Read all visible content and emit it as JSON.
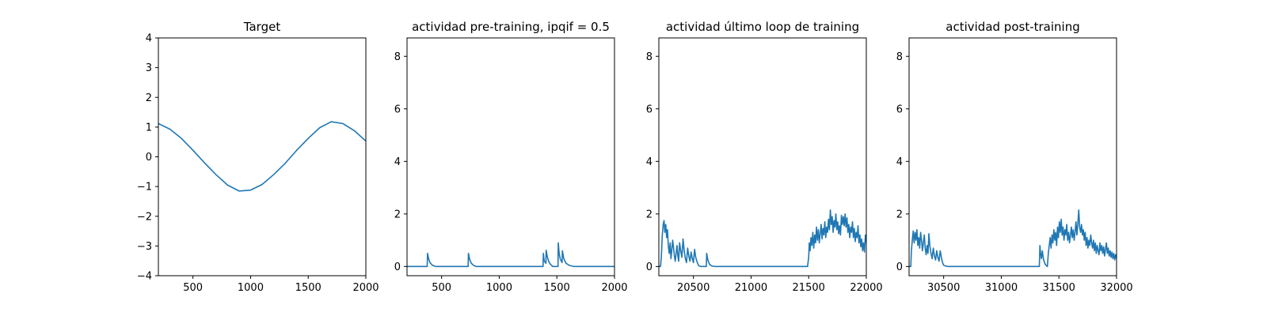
{
  "chart_data": [
    {
      "type": "line",
      "title": "Target",
      "xlabel": "",
      "ylabel": "",
      "xlim": [
        200,
        2000
      ],
      "ylim": [
        -4,
        4
      ],
      "xticks": [
        500,
        1000,
        1500,
        2000
      ],
      "yticks": [
        -4,
        -3,
        -2,
        -1,
        0,
        1,
        2,
        3,
        4
      ],
      "grid": false,
      "line_color": "#1f77b4",
      "series": [
        {
          "x": [
            200,
            300,
            400,
            500,
            600,
            700,
            800,
            900,
            1000,
            1100,
            1200,
            1300,
            1400,
            1500,
            1600,
            1700,
            1800,
            1900,
            2000
          ],
          "y": [
            1.12,
            0.93,
            0.62,
            0.22,
            -0.2,
            -0.6,
            -0.95,
            -1.15,
            -1.12,
            -0.93,
            -0.6,
            -0.22,
            0.22,
            0.62,
            0.98,
            1.18,
            1.12,
            0.88,
            0.53
          ]
        }
      ]
    },
    {
      "type": "line",
      "title": "actividad pre-training, ipqif = 0.5",
      "xlabel": "",
      "ylabel": "",
      "xlim": [
        200,
        2000
      ],
      "ylim": [
        -0.35,
        8.7
      ],
      "xticks": [
        500,
        1000,
        1500,
        2000
      ],
      "yticks": [
        0,
        2,
        4,
        6,
        8
      ],
      "grid": false,
      "line_color": "#1f77b4",
      "series": [
        {
          "x": [
            200,
            375,
            378,
            388,
            400,
            420,
            450,
            730,
            733,
            743,
            755,
            775,
            800,
            1380,
            1383,
            1390,
            1405,
            1407,
            1418,
            1430,
            1445,
            1465,
            1510,
            1512,
            1520,
            1530,
            1545,
            1548,
            1560,
            1580,
            1610,
            1650,
            2000
          ],
          "y": [
            0,
            0,
            0.5,
            0.28,
            0.14,
            0.05,
            0,
            0,
            0.5,
            0.28,
            0.14,
            0.05,
            0,
            0,
            0.5,
            0.22,
            0.12,
            0.62,
            0.35,
            0.18,
            0.08,
            0,
            0,
            0.9,
            0.5,
            0.28,
            0.15,
            0.6,
            0.3,
            0.12,
            0.04,
            0,
            0
          ]
        }
      ]
    },
    {
      "type": "line",
      "title": "actividad último loop de training",
      "xlabel": "",
      "ylabel": "",
      "xlim": [
        20200,
        22000
      ],
      "ylim": [
        -0.35,
        8.7
      ],
      "xticks": [
        20500,
        21000,
        21500,
        22000
      ],
      "yticks": [
        0,
        2,
        4,
        6,
        8
      ],
      "grid": false,
      "line_color": "#1f77b4",
      "series": [
        {
          "x": [
            20200,
            20215,
            20222,
            20230,
            20238,
            20245,
            20252,
            20260,
            20268,
            20275,
            20282,
            20290,
            20298,
            20305,
            20312,
            20320,
            20328,
            20335,
            20342,
            20350,
            20358,
            20365,
            20372,
            20380,
            20390,
            20400,
            20410,
            20420,
            20430,
            20440,
            20450,
            20460,
            20470,
            20480,
            20490,
            20500,
            20510,
            20520,
            20530,
            20540,
            20550,
            20570,
            20600,
            20612,
            20615,
            20625,
            20640,
            20660,
            20690,
            21490,
            21500,
            21505,
            21512,
            21520,
            21528,
            21536,
            21544,
            21552,
            21560,
            21568,
            21576,
            21584,
            21592,
            21600,
            21608,
            21616,
            21624,
            21632,
            21640,
            21648,
            21656,
            21664,
            21672,
            21680,
            21688,
            21696,
            21704,
            21712,
            21720,
            21728,
            21736,
            21744,
            21752,
            21760,
            21768,
            21776,
            21784,
            21792,
            21800,
            21808,
            21816,
            21824,
            21832,
            21840,
            21848,
            21856,
            21864,
            21872,
            21880,
            21888,
            21896,
            21904,
            21912,
            21920,
            21928,
            21936,
            21944,
            21952,
            21960,
            21968,
            21976,
            21984,
            21992,
            22000
          ],
          "y": [
            0,
            0,
            0.4,
            1.2,
            1.6,
            1.75,
            1.3,
            1.6,
            1.1,
            1.4,
            0.8,
            0.5,
            0.9,
            0.3,
            0.6,
            1.0,
            0.7,
            0.4,
            0.2,
            0.5,
            0.8,
            0.4,
            0.2,
            0.9,
            0.6,
            0.35,
            1.05,
            0.6,
            0.3,
            0.15,
            0.7,
            0.4,
            0.2,
            0.55,
            0.3,
            0.15,
            0.65,
            0.35,
            0.2,
            0.08,
            0.02,
            0,
            0,
            0,
            0.5,
            0.25,
            0.08,
            0.02,
            0,
            0,
            0.35,
            0.9,
            0.6,
            1.1,
            0.8,
            1.3,
            0.7,
            1.2,
            0.9,
            1.5,
            1.0,
            1.4,
            0.9,
            1.25,
            1.6,
            1.05,
            1.45,
            1.2,
            1.7,
            1.1,
            1.5,
            1.3,
            1.8,
            1.4,
            2.15,
            1.6,
            1.9,
            1.3,
            1.75,
            1.5,
            2.0,
            1.4,
            1.7,
            1.25,
            1.55,
            1.2,
            1.95,
            1.6,
            1.9,
            1.55,
            2.0,
            1.5,
            1.85,
            1.3,
            1.6,
            1.1,
            1.5,
            1.3,
            1.7,
            1.1,
            1.45,
            0.95,
            1.3,
            1.1,
            1.55,
            0.9,
            1.2,
            0.75,
            1.05,
            0.6,
            0.9,
            0.55,
            1.2,
            0.9
          ]
        }
      ]
    },
    {
      "type": "line",
      "title": "actividad post-training",
      "xlabel": "",
      "ylabel": "",
      "xlim": [
        30200,
        32000
      ],
      "ylim": [
        -0.35,
        8.7
      ],
      "xticks": [
        30500,
        31000,
        31500,
        32000
      ],
      "yticks": [
        0,
        2,
        4,
        6,
        8
      ],
      "grid": false,
      "line_color": "#1f77b4",
      "series": [
        {
          "x": [
            30200,
            30215,
            30220,
            30228,
            30236,
            30244,
            30252,
            30260,
            30268,
            30276,
            30284,
            30292,
            30300,
            30308,
            30316,
            30324,
            30332,
            30340,
            30348,
            30356,
            30364,
            30372,
            30380,
            30390,
            30400,
            30410,
            30420,
            30430,
            30440,
            30450,
            30460,
            30470,
            30480,
            30490,
            30500,
            30515,
            30540,
            30570,
            31330,
            31335,
            31340,
            31348,
            31356,
            31365,
            31375,
            31385,
            31395,
            31400,
            31408,
            31416,
            31424,
            31432,
            31440,
            31448,
            31456,
            31464,
            31472,
            31480,
            31488,
            31496,
            31504,
            31512,
            31520,
            31528,
            31536,
            31544,
            31552,
            31560,
            31568,
            31576,
            31584,
            31592,
            31600,
            31608,
            31616,
            31624,
            31632,
            31640,
            31648,
            31656,
            31664,
            31672,
            31680,
            31688,
            31696,
            31704,
            31712,
            31720,
            31728,
            31736,
            31744,
            31752,
            31760,
            31768,
            31776,
            31784,
            31792,
            31800,
            31808,
            31816,
            31824,
            31832,
            31840,
            31848,
            31856,
            31864,
            31872,
            31880,
            31888,
            31896,
            31904,
            31912,
            31920,
            31928,
            31936,
            31944,
            31952,
            31960,
            31968,
            31976,
            31984,
            31992,
            32000
          ],
          "y": [
            0,
            0,
            0.6,
            1.0,
            1.35,
            0.9,
            1.3,
            1.0,
            1.4,
            0.8,
            1.1,
            0.7,
            1.3,
            1.0,
            0.6,
            0.9,
            1.2,
            0.7,
            0.45,
            0.8,
            0.5,
            1.25,
            0.8,
            0.5,
            0.3,
            0.7,
            0.4,
            0.25,
            0.6,
            0.35,
            0.2,
            0.6,
            0.35,
            0.15,
            0.05,
            0.02,
            0,
            0,
            0,
            0.8,
            0.55,
            0.3,
            0.6,
            0.3,
            0.15,
            0.06,
            0.02,
            0,
            0.5,
            0.8,
            1.1,
            0.7,
            1.2,
            0.9,
            1.4,
            1.0,
            1.3,
            0.8,
            1.5,
            1.1,
            1.7,
            1.3,
            1.8,
            1.2,
            1.5,
            1.0,
            1.4,
            1.2,
            1.6,
            1.0,
            1.3,
            0.9,
            1.2,
            1.5,
            1.1,
            1.4,
            1.0,
            1.3,
            1.7,
            1.2,
            1.6,
            2.15,
            1.5,
            1.3,
            1.6,
            1.2,
            1.4,
            1.0,
            1.3,
            0.8,
            1.1,
            0.7,
            1.0,
            0.8,
            1.2,
            0.9,
            0.7,
            1.0,
            0.6,
            0.9,
            0.5,
            0.8,
            0.6,
            0.45,
            0.9,
            0.6,
            0.8,
            0.5,
            0.75,
            0.4,
            0.65,
            0.9,
            0.5,
            0.7,
            0.4,
            0.6,
            0.35,
            0.55,
            0.3,
            0.5,
            0.25,
            0.45,
            0.3
          ]
        }
      ]
    }
  ]
}
